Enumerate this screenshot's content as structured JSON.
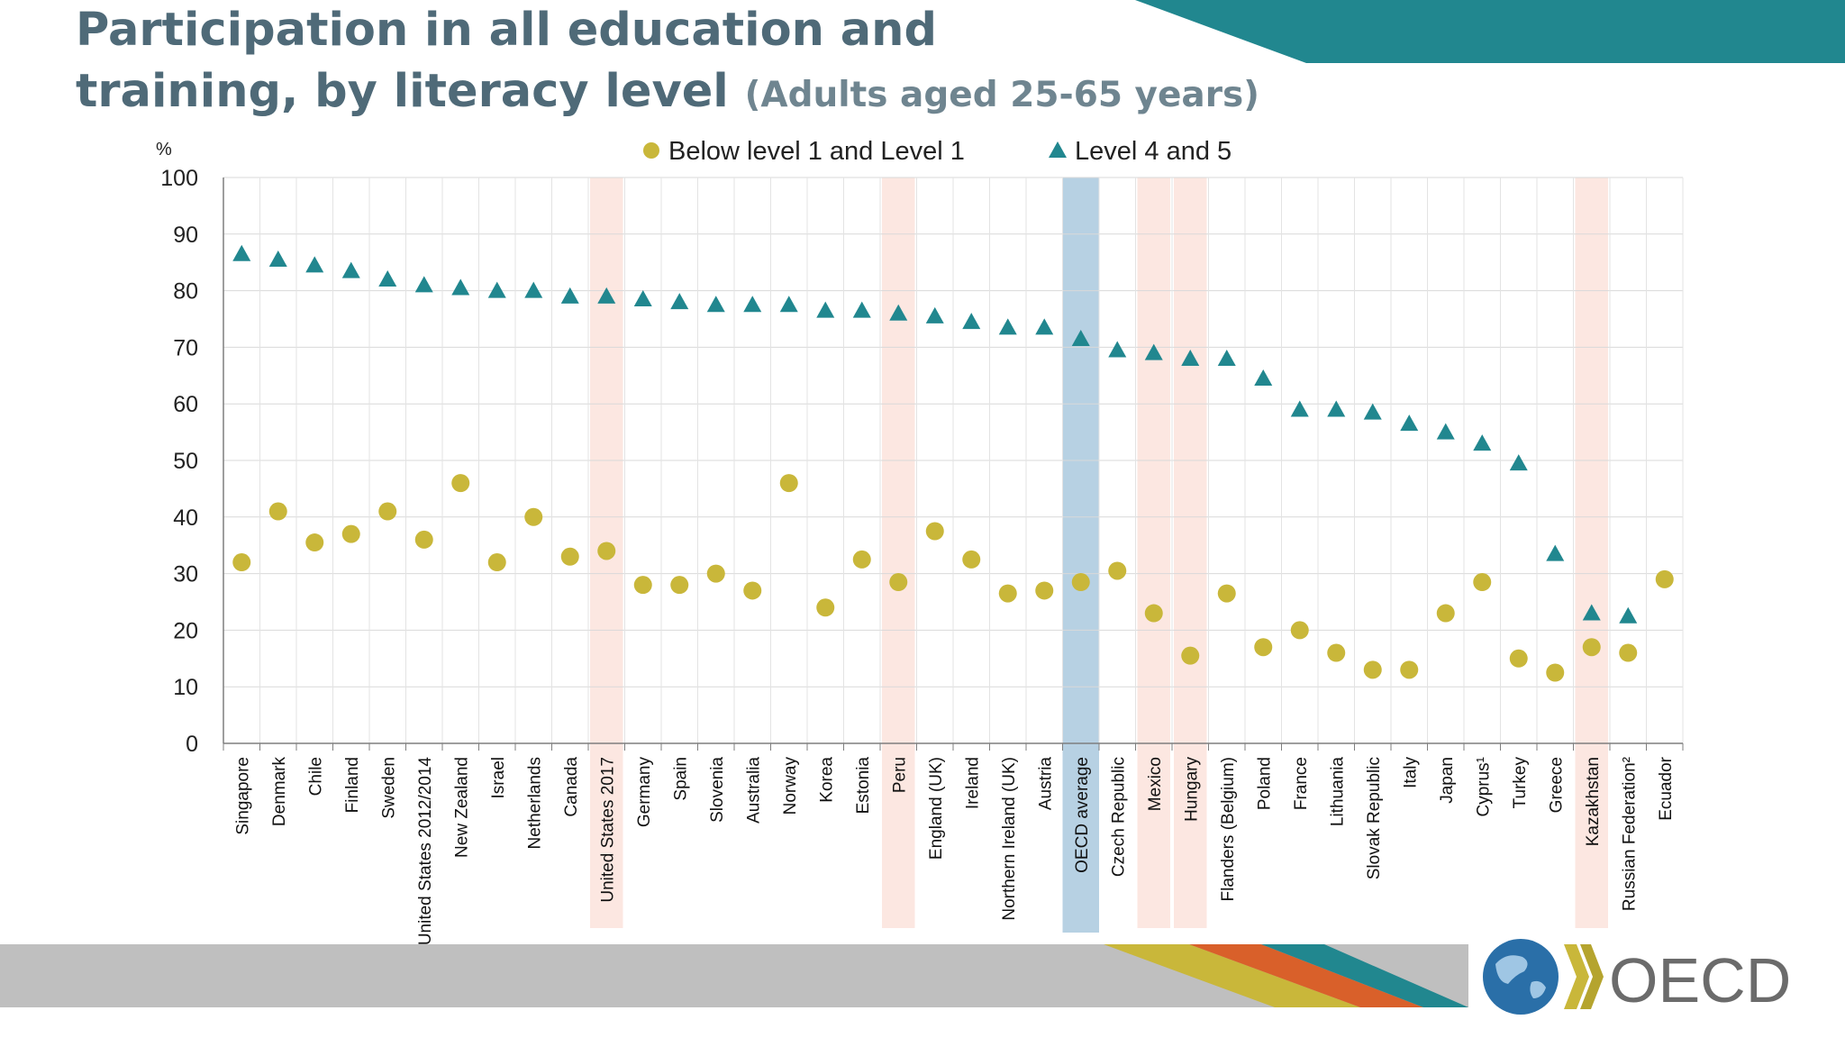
{
  "slide": {
    "title_line1": "Participation in all education and",
    "title_line2": "training, by literacy level",
    "title_sub": "(Adults aged 25-65 years)",
    "logo_text": "OECD",
    "colors": {
      "teal": "#21878f",
      "olive": "#c9b73a",
      "orange": "#d9602a",
      "gray": "#bfbfbf",
      "title": "#4f6a78"
    }
  },
  "chart_data": {
    "type": "scatter",
    "ylabel": "%",
    "ylim": [
      0,
      100
    ],
    "yticks": [
      0,
      10,
      20,
      30,
      40,
      50,
      60,
      70,
      80,
      90,
      100
    ],
    "grid": true,
    "legend_position": "top",
    "categories": [
      "Singapore",
      "Denmark",
      "Chile",
      "Finland",
      "Sweden",
      "United States 2012/2014",
      "New Zealand",
      "Israel",
      "Netherlands",
      "Canada",
      "United States 2017",
      "Germany",
      "Spain",
      "Slovenia",
      "Australia",
      "Norway",
      "Korea",
      "Estonia",
      "Peru",
      "England (UK)",
      "Ireland",
      "Northern Ireland (UK)",
      "Austria",
      "OECD average",
      "Czech Republic",
      "Mexico",
      "Hungary",
      "Flanders (Belgium)",
      "Poland",
      "France",
      "Lithuania",
      "Slovak Republic",
      "Italy",
      "Japan",
      "Cyprus¹",
      "Turkey",
      "Greece",
      "Kazakhstan",
      "Russian Federation²",
      "Ecuador"
    ],
    "series": [
      {
        "name": "Below level 1 and Level 1",
        "marker": "circle",
        "color": "#c9b73a",
        "values": [
          32,
          41,
          35.5,
          37,
          41,
          36,
          46,
          32,
          40,
          33,
          34,
          28,
          28,
          30,
          27,
          46,
          24,
          32.5,
          28.5,
          37.5,
          32.5,
          26.5,
          27,
          28.5,
          30.5,
          23,
          15.5,
          26.5,
          17,
          20,
          16,
          13,
          13,
          23,
          28.5,
          15,
          12.5,
          17,
          16,
          29
        ]
      },
      {
        "name": "Level 4 and 5",
        "marker": "triangle",
        "color": "#21878f",
        "values": [
          86.5,
          85.5,
          84.5,
          83.5,
          82,
          81,
          80.5,
          80,
          80,
          79,
          79,
          78.5,
          78,
          77.5,
          77.5,
          77.5,
          76.5,
          76.5,
          76,
          75.5,
          74.5,
          73.5,
          73.5,
          71.5,
          69.5,
          69,
          68,
          68,
          64.5,
          59,
          59,
          58.5,
          56.5,
          55,
          53,
          49.5,
          33.5,
          23,
          22.5,
          null
        ]
      }
    ],
    "highlight": {
      "oecd_category": "OECD average",
      "new_round_categories": [
        "United States 2017",
        "Peru",
        "Mexico",
        "Hungary",
        "Kazakhstan"
      ]
    }
  }
}
